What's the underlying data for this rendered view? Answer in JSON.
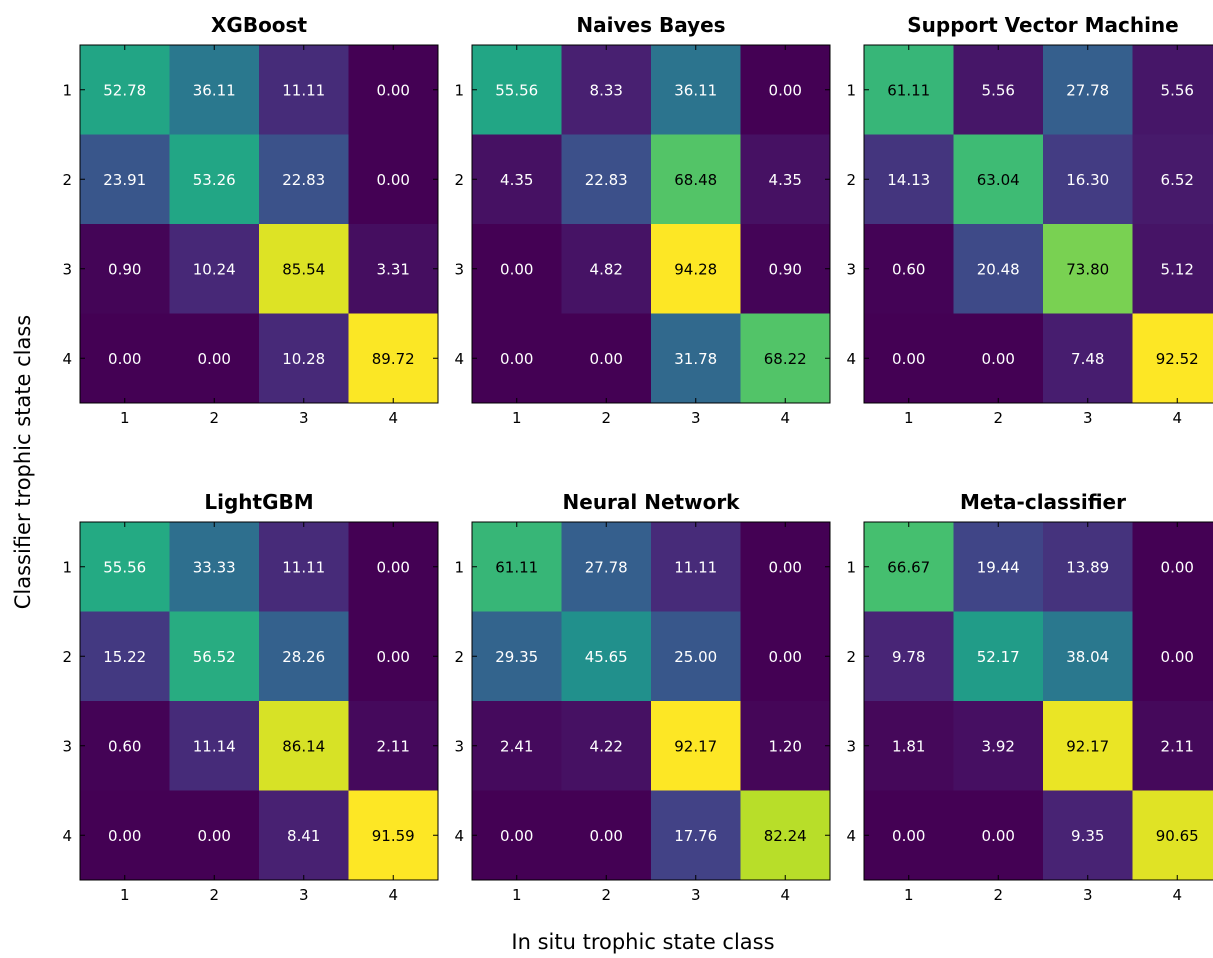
{
  "figure": {
    "ylabel": "Classifier trophic state class",
    "xlabel": "In situ trophic state class"
  },
  "chart_data": [
    {
      "type": "heatmap",
      "title": "XGBoost",
      "x_categories": [
        "1",
        "2",
        "3",
        "4"
      ],
      "y_categories": [
        "1",
        "2",
        "3",
        "4"
      ],
      "values": [
        [
          "52.78",
          "36.11",
          "11.11",
          "0.00"
        ],
        [
          "23.91",
          "53.26",
          "22.83",
          "0.00"
        ],
        [
          "0.90",
          "10.24",
          "85.54",
          "3.31"
        ],
        [
          "0.00",
          "0.00",
          "10.28",
          "89.72"
        ]
      ],
      "colormap": "viridis",
      "vmin": 0,
      "vmax": 90
    },
    {
      "type": "heatmap",
      "title": "Naives Bayes",
      "x_categories": [
        "1",
        "2",
        "3",
        "4"
      ],
      "y_categories": [
        "1",
        "2",
        "3",
        "4"
      ],
      "values": [
        [
          "55.56",
          "8.33",
          "36.11",
          "0.00"
        ],
        [
          "4.35",
          "22.83",
          "68.48",
          "4.35"
        ],
        [
          "0.00",
          "4.82",
          "94.28",
          "0.90"
        ],
        [
          "0.00",
          "0.00",
          "31.78",
          "68.22"
        ]
      ],
      "colormap": "viridis",
      "vmin": 0,
      "vmax": 94
    },
    {
      "type": "heatmap",
      "title": "Support Vector Machine",
      "x_categories": [
        "1",
        "2",
        "3",
        "4"
      ],
      "y_categories": [
        "1",
        "2",
        "3",
        "4"
      ],
      "values": [
        [
          "61.11",
          "5.56",
          "27.78",
          "5.56"
        ],
        [
          "14.13",
          "63.04",
          "16.30",
          "6.52"
        ],
        [
          "0.60",
          "20.48",
          "73.80",
          "5.12"
        ],
        [
          "0.00",
          "0.00",
          "7.48",
          "92.52"
        ]
      ],
      "colormap": "viridis",
      "vmin": 0,
      "vmax": 92.5
    },
    {
      "type": "heatmap",
      "title": "LightGBM",
      "x_categories": [
        "1",
        "2",
        "3",
        "4"
      ],
      "y_categories": [
        "1",
        "2",
        "3",
        "4"
      ],
      "values": [
        [
          "55.56",
          "33.33",
          "11.11",
          "0.00"
        ],
        [
          "15.22",
          "56.52",
          "28.26",
          "0.00"
        ],
        [
          "0.60",
          "11.14",
          "86.14",
          "2.11"
        ],
        [
          "0.00",
          "0.00",
          "8.41",
          "91.59"
        ]
      ],
      "colormap": "viridis",
      "vmin": 0,
      "vmax": 91.6
    },
    {
      "type": "heatmap",
      "title": "Neural Network",
      "x_categories": [
        "1",
        "2",
        "3",
        "4"
      ],
      "y_categories": [
        "1",
        "2",
        "3",
        "4"
      ],
      "values": [
        [
          "61.11",
          "27.78",
          "11.11",
          "0.00"
        ],
        [
          "29.35",
          "45.65",
          "25.00",
          "0.00"
        ],
        [
          "2.41",
          "4.22",
          "92.17",
          "1.20"
        ],
        [
          "0.00",
          "0.00",
          "17.76",
          "82.24"
        ]
      ],
      "colormap": "viridis",
      "vmin": 0,
      "vmax": 92.2
    },
    {
      "type": "heatmap",
      "title": "Meta-classifier",
      "x_categories": [
        "1",
        "2",
        "3",
        "4"
      ],
      "y_categories": [
        "1",
        "2",
        "3",
        "4"
      ],
      "values": [
        [
          "66.67",
          "19.44",
          "13.89",
          "0.00"
        ],
        [
          "9.78",
          "52.17",
          "38.04",
          "0.00"
        ],
        [
          "1.81",
          "3.92",
          "92.17",
          "2.11"
        ],
        [
          "0.00",
          "0.00",
          "9.35",
          "90.65"
        ]
      ],
      "colormap": "viridis",
      "vmin": 0,
      "vmax": 95
    }
  ]
}
